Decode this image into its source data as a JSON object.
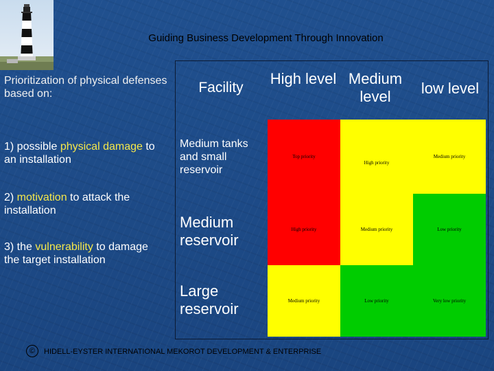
{
  "title": "Guiding Business Development Through Innovation",
  "intro": "Prioritization of physical defenses based on:",
  "factors": {
    "f1_pre": "1) possible ",
    "f1_hl1": "physical damage",
    "f1_post": " to an installation",
    "f2_pre": "2) ",
    "f2_hl": "motivation",
    "f2_post": " to attack the installation",
    "f3_pre": "3) the ",
    "f3_hl": "vulnerability",
    "f3_post": " to damage the target installation"
  },
  "table": {
    "corner": "Facility",
    "columns": [
      "High level",
      "Medium level",
      "low level"
    ],
    "rows": [
      {
        "label": "Medium tanks and small reservoir",
        "cells": [
          "Top priority",
          "High priority",
          "Medium priority"
        ]
      },
      {
        "label": "Medium reservoir",
        "cells": [
          "High priority",
          "Medium priority",
          "Low priority"
        ]
      },
      {
        "label": "Large reservoir",
        "cells": [
          "Medium priority",
          "Low priority",
          "Very low priority"
        ]
      }
    ],
    "colors": {
      "red": "#ff0000",
      "yellow": "#ffff00",
      "green": "#00cc00"
    }
  },
  "footer": {
    "copyright_symbol": "©",
    "text": "HIDELL-EYSTER INTERNATIONAL  MEKOROT DEVELOPMENT & ENTERPRISE"
  }
}
